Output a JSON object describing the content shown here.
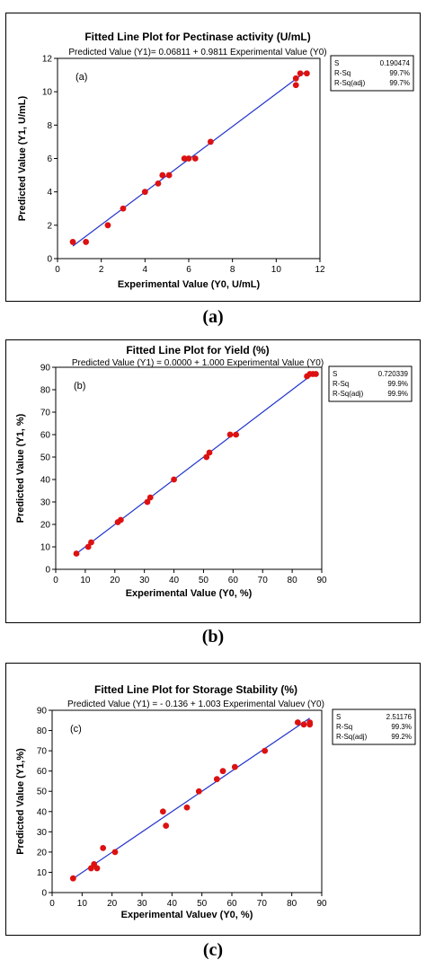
{
  "chart_data": [
    {
      "type": "scatter",
      "title": "Fitted Line Plot for Pectinase activity (U/mL)",
      "subtitle": "Predicted Value (Y1)=  0.06811 + 0.9811 Experimental Value (Y0)",
      "panel_label": "(a)",
      "caption": "(a)",
      "xlabel": "Experimental Value (Y0, U/mL)",
      "ylabel": "Predicted Value (Y1, U/mL)",
      "xlim": [
        0,
        12
      ],
      "ylim": [
        0,
        12
      ],
      "xticks": [
        0,
        2,
        4,
        6,
        8,
        10,
        12
      ],
      "yticks": [
        0,
        2,
        4,
        6,
        8,
        10,
        12
      ],
      "grid": false,
      "fit": {
        "intercept": 0.06811,
        "slope": 0.9811,
        "x_range": [
          0.7,
          11.4
        ],
        "color": "#2233cc"
      },
      "point_color": "#dd1111",
      "stats": [
        {
          "label": "S",
          "value": "0.190474"
        },
        {
          "label": "R-Sq",
          "value": "99.7%"
        },
        {
          "label": "R-Sq(adj)",
          "value": "99.7%"
        }
      ],
      "points": [
        {
          "x": 0.7,
          "y": 1.0
        },
        {
          "x": 1.3,
          "y": 1.0
        },
        {
          "x": 2.3,
          "y": 2.0
        },
        {
          "x": 3.0,
          "y": 3.0
        },
        {
          "x": 4.0,
          "y": 4.0
        },
        {
          "x": 4.6,
          "y": 4.5
        },
        {
          "x": 4.8,
          "y": 5.0
        },
        {
          "x": 5.1,
          "y": 5.0
        },
        {
          "x": 5.8,
          "y": 6.0
        },
        {
          "x": 6.0,
          "y": 6.0
        },
        {
          "x": 6.3,
          "y": 6.0
        },
        {
          "x": 7.0,
          "y": 7.0
        },
        {
          "x": 10.9,
          "y": 10.8
        },
        {
          "x": 10.9,
          "y": 10.4
        },
        {
          "x": 11.1,
          "y": 11.1
        },
        {
          "x": 11.4,
          "y": 11.1
        }
      ]
    },
    {
      "type": "scatter",
      "title": "Fitted Line Plot for Yield (%)",
      "subtitle": "Predicted Value (Y1) = 0.0000 + 1.000 Experimental Value  (Y0)",
      "panel_label": "(b)",
      "caption": "(b)",
      "xlabel": "Experimental Value  (Y0, %)",
      "ylabel": "Predicted Value (Y1, %)",
      "xlim": [
        0,
        90
      ],
      "ylim": [
        0,
        90
      ],
      "xticks": [
        0,
        10,
        20,
        30,
        40,
        50,
        60,
        70,
        80,
        90
      ],
      "yticks": [
        0,
        10,
        20,
        30,
        40,
        50,
        60,
        70,
        80,
        90
      ],
      "grid": false,
      "fit": {
        "intercept": 0.0,
        "slope": 1.0,
        "x_range": [
          7,
          88
        ],
        "color": "#2233cc"
      },
      "point_color": "#dd1111",
      "stats": [
        {
          "label": "S",
          "value": "0.720339"
        },
        {
          "label": "R-Sq",
          "value": "99.9%"
        },
        {
          "label": "R-Sq(adj)",
          "value": "99.9%"
        }
      ],
      "points": [
        {
          "x": 7,
          "y": 7
        },
        {
          "x": 11,
          "y": 10
        },
        {
          "x": 12,
          "y": 12
        },
        {
          "x": 21,
          "y": 21
        },
        {
          "x": 22,
          "y": 22
        },
        {
          "x": 31,
          "y": 30
        },
        {
          "x": 32,
          "y": 32
        },
        {
          "x": 40,
          "y": 40
        },
        {
          "x": 51,
          "y": 50
        },
        {
          "x": 52,
          "y": 52
        },
        {
          "x": 59,
          "y": 60
        },
        {
          "x": 61,
          "y": 60
        },
        {
          "x": 85,
          "y": 86
        },
        {
          "x": 86,
          "y": 87
        },
        {
          "x": 87,
          "y": 87
        },
        {
          "x": 88,
          "y": 87
        }
      ]
    },
    {
      "type": "scatter",
      "title": "Fitted Line Plot for Storage Stability (%)",
      "subtitle": "Predicted Value (Y1) =  - 0.136 + 1.003 Experimental Valuev (Y0)",
      "panel_label": "(c)",
      "caption": "(c)",
      "xlabel": "Experimental Valuev (Y0, %)",
      "ylabel": "Predicted Value (Y1,%)",
      "xlim": [
        0,
        90
      ],
      "ylim": [
        0,
        90
      ],
      "xticks": [
        0,
        10,
        20,
        30,
        40,
        50,
        60,
        70,
        80,
        90
      ],
      "yticks": [
        0,
        10,
        20,
        30,
        40,
        50,
        60,
        70,
        80,
        90
      ],
      "grid": false,
      "fit": {
        "intercept": -0.136,
        "slope": 1.003,
        "x_range": [
          7,
          86
        ],
        "color": "#2233cc"
      },
      "point_color": "#dd1111",
      "stats": [
        {
          "label": "S",
          "value": "2.51176"
        },
        {
          "label": "R-Sq",
          "value": "99.3%"
        },
        {
          "label": "R-Sq(adj)",
          "value": "99.2%"
        }
      ],
      "points": [
        {
          "x": 7,
          "y": 7
        },
        {
          "x": 13,
          "y": 12
        },
        {
          "x": 14,
          "y": 14
        },
        {
          "x": 15,
          "y": 12
        },
        {
          "x": 17,
          "y": 22
        },
        {
          "x": 21,
          "y": 20
        },
        {
          "x": 37,
          "y": 40
        },
        {
          "x": 38,
          "y": 33
        },
        {
          "x": 45,
          "y": 42
        },
        {
          "x": 49,
          "y": 50
        },
        {
          "x": 55,
          "y": 56
        },
        {
          "x": 57,
          "y": 60
        },
        {
          "x": 61,
          "y": 62
        },
        {
          "x": 71,
          "y": 70
        },
        {
          "x": 82,
          "y": 84
        },
        {
          "x": 84,
          "y": 83
        },
        {
          "x": 86,
          "y": 84
        },
        {
          "x": 86,
          "y": 83
        }
      ]
    }
  ]
}
